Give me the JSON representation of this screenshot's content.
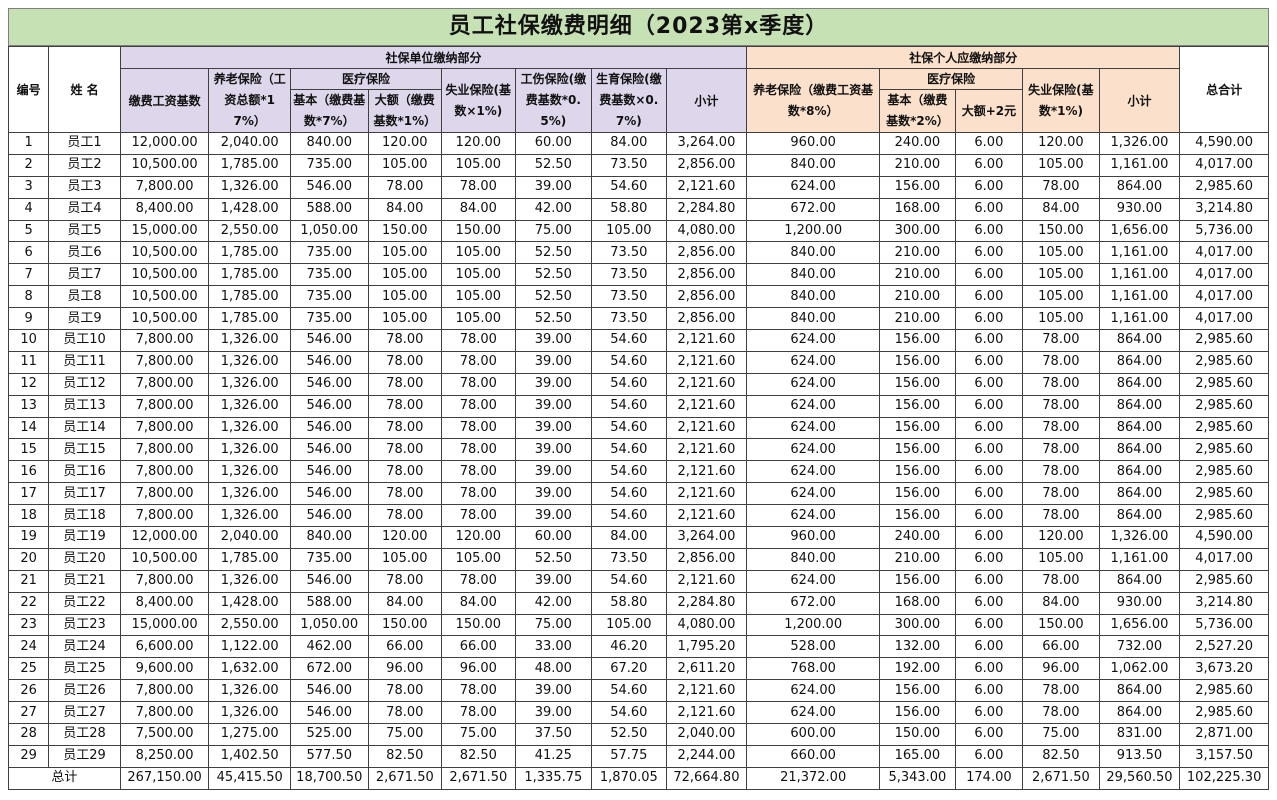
{
  "title": "员工社保缴费明细（2023第x季度）",
  "header": {
    "no": "编号",
    "name": "姓 名",
    "unit_group": "社保单位缴纳部分",
    "personal_group": "社保个人应缴纳部分",
    "grand_total": "总合计",
    "unit_base": "缴费工资基数",
    "unit_pension": "养老保险（工资总额*17%）",
    "unit_medical": "医疗保险",
    "unit_med_basic": "基本（缴费基数*7%）",
    "unit_med_major": "大额（缴费基数*1%）",
    "unit_unemp": "失业保险(基数×1%)",
    "unit_injury": "工伤保险(缴费基数*0.5%)",
    "unit_maternity": "生育保险(缴费基数×0.7%)",
    "unit_subtotal": "小计",
    "pers_pension": "养老保险（缴费工资基数*8%）",
    "pers_medical": "医疗保险",
    "pers_med_basic": "基本（缴费基数*2%）",
    "pers_med_major": "大额+2元",
    "pers_unemp": "失业保险(基数*1%)",
    "pers_subtotal": "小计"
  },
  "rows": [
    [
      "1",
      "员工1",
      "12,000.00",
      "2,040.00",
      "840.00",
      "120.00",
      "120.00",
      "60.00",
      "84.00",
      "3,264.00",
      "960.00",
      "240.00",
      "6.00",
      "120.00",
      "1,326.00",
      "4,590.00"
    ],
    [
      "2",
      "员工2",
      "10,500.00",
      "1,785.00",
      "735.00",
      "105.00",
      "105.00",
      "52.50",
      "73.50",
      "2,856.00",
      "840.00",
      "210.00",
      "6.00",
      "105.00",
      "1,161.00",
      "4,017.00"
    ],
    [
      "3",
      "员工3",
      "7,800.00",
      "1,326.00",
      "546.00",
      "78.00",
      "78.00",
      "39.00",
      "54.60",
      "2,121.60",
      "624.00",
      "156.00",
      "6.00",
      "78.00",
      "864.00",
      "2,985.60"
    ],
    [
      "4",
      "员工4",
      "8,400.00",
      "1,428.00",
      "588.00",
      "84.00",
      "84.00",
      "42.00",
      "58.80",
      "2,284.80",
      "672.00",
      "168.00",
      "6.00",
      "84.00",
      "930.00",
      "3,214.80"
    ],
    [
      "5",
      "员工5",
      "15,000.00",
      "2,550.00",
      "1,050.00",
      "150.00",
      "150.00",
      "75.00",
      "105.00",
      "4,080.00",
      "1,200.00",
      "300.00",
      "6.00",
      "150.00",
      "1,656.00",
      "5,736.00"
    ],
    [
      "6",
      "员工6",
      "10,500.00",
      "1,785.00",
      "735.00",
      "105.00",
      "105.00",
      "52.50",
      "73.50",
      "2,856.00",
      "840.00",
      "210.00",
      "6.00",
      "105.00",
      "1,161.00",
      "4,017.00"
    ],
    [
      "7",
      "员工7",
      "10,500.00",
      "1,785.00",
      "735.00",
      "105.00",
      "105.00",
      "52.50",
      "73.50",
      "2,856.00",
      "840.00",
      "210.00",
      "6.00",
      "105.00",
      "1,161.00",
      "4,017.00"
    ],
    [
      "8",
      "员工8",
      "10,500.00",
      "1,785.00",
      "735.00",
      "105.00",
      "105.00",
      "52.50",
      "73.50",
      "2,856.00",
      "840.00",
      "210.00",
      "6.00",
      "105.00",
      "1,161.00",
      "4,017.00"
    ],
    [
      "9",
      "员工9",
      "10,500.00",
      "1,785.00",
      "735.00",
      "105.00",
      "105.00",
      "52.50",
      "73.50",
      "2,856.00",
      "840.00",
      "210.00",
      "6.00",
      "105.00",
      "1,161.00",
      "4,017.00"
    ],
    [
      "10",
      "员工10",
      "7,800.00",
      "1,326.00",
      "546.00",
      "78.00",
      "78.00",
      "39.00",
      "54.60",
      "2,121.60",
      "624.00",
      "156.00",
      "6.00",
      "78.00",
      "864.00",
      "2,985.60"
    ],
    [
      "11",
      "员工11",
      "7,800.00",
      "1,326.00",
      "546.00",
      "78.00",
      "78.00",
      "39.00",
      "54.60",
      "2,121.60",
      "624.00",
      "156.00",
      "6.00",
      "78.00",
      "864.00",
      "2,985.60"
    ],
    [
      "12",
      "员工12",
      "7,800.00",
      "1,326.00",
      "546.00",
      "78.00",
      "78.00",
      "39.00",
      "54.60",
      "2,121.60",
      "624.00",
      "156.00",
      "6.00",
      "78.00",
      "864.00",
      "2,985.60"
    ],
    [
      "13",
      "员工13",
      "7,800.00",
      "1,326.00",
      "546.00",
      "78.00",
      "78.00",
      "39.00",
      "54.60",
      "2,121.60",
      "624.00",
      "156.00",
      "6.00",
      "78.00",
      "864.00",
      "2,985.60"
    ],
    [
      "14",
      "员工14",
      "7,800.00",
      "1,326.00",
      "546.00",
      "78.00",
      "78.00",
      "39.00",
      "54.60",
      "2,121.60",
      "624.00",
      "156.00",
      "6.00",
      "78.00",
      "864.00",
      "2,985.60"
    ],
    [
      "15",
      "员工15",
      "7,800.00",
      "1,326.00",
      "546.00",
      "78.00",
      "78.00",
      "39.00",
      "54.60",
      "2,121.60",
      "624.00",
      "156.00",
      "6.00",
      "78.00",
      "864.00",
      "2,985.60"
    ],
    [
      "16",
      "员工16",
      "7,800.00",
      "1,326.00",
      "546.00",
      "78.00",
      "78.00",
      "39.00",
      "54.60",
      "2,121.60",
      "624.00",
      "156.00",
      "6.00",
      "78.00",
      "864.00",
      "2,985.60"
    ],
    [
      "17",
      "员工17",
      "7,800.00",
      "1,326.00",
      "546.00",
      "78.00",
      "78.00",
      "39.00",
      "54.60",
      "2,121.60",
      "624.00",
      "156.00",
      "6.00",
      "78.00",
      "864.00",
      "2,985.60"
    ],
    [
      "18",
      "员工18",
      "7,800.00",
      "1,326.00",
      "546.00",
      "78.00",
      "78.00",
      "39.00",
      "54.60",
      "2,121.60",
      "624.00",
      "156.00",
      "6.00",
      "78.00",
      "864.00",
      "2,985.60"
    ],
    [
      "19",
      "员工19",
      "12,000.00",
      "2,040.00",
      "840.00",
      "120.00",
      "120.00",
      "60.00",
      "84.00",
      "3,264.00",
      "960.00",
      "240.00",
      "6.00",
      "120.00",
      "1,326.00",
      "4,590.00"
    ],
    [
      "20",
      "员工20",
      "10,500.00",
      "1,785.00",
      "735.00",
      "105.00",
      "105.00",
      "52.50",
      "73.50",
      "2,856.00",
      "840.00",
      "210.00",
      "6.00",
      "105.00",
      "1,161.00",
      "4,017.00"
    ],
    [
      "21",
      "员工21",
      "7,800.00",
      "1,326.00",
      "546.00",
      "78.00",
      "78.00",
      "39.00",
      "54.60",
      "2,121.60",
      "624.00",
      "156.00",
      "6.00",
      "78.00",
      "864.00",
      "2,985.60"
    ],
    [
      "22",
      "员工22",
      "8,400.00",
      "1,428.00",
      "588.00",
      "84.00",
      "84.00",
      "42.00",
      "58.80",
      "2,284.80",
      "672.00",
      "168.00",
      "6.00",
      "84.00",
      "930.00",
      "3,214.80"
    ],
    [
      "23",
      "员工23",
      "15,000.00",
      "2,550.00",
      "1,050.00",
      "150.00",
      "150.00",
      "75.00",
      "105.00",
      "4,080.00",
      "1,200.00",
      "300.00",
      "6.00",
      "150.00",
      "1,656.00",
      "5,736.00"
    ],
    [
      "24",
      "员工24",
      "6,600.00",
      "1,122.00",
      "462.00",
      "66.00",
      "66.00",
      "33.00",
      "46.20",
      "1,795.20",
      "528.00",
      "132.00",
      "6.00",
      "66.00",
      "732.00",
      "2,527.20"
    ],
    [
      "25",
      "员工25",
      "9,600.00",
      "1,632.00",
      "672.00",
      "96.00",
      "96.00",
      "48.00",
      "67.20",
      "2,611.20",
      "768.00",
      "192.00",
      "6.00",
      "96.00",
      "1,062.00",
      "3,673.20"
    ],
    [
      "26",
      "员工26",
      "7,800.00",
      "1,326.00",
      "546.00",
      "78.00",
      "78.00",
      "39.00",
      "54.60",
      "2,121.60",
      "624.00",
      "156.00",
      "6.00",
      "78.00",
      "864.00",
      "2,985.60"
    ],
    [
      "27",
      "员工27",
      "7,800.00",
      "1,326.00",
      "546.00",
      "78.00",
      "78.00",
      "39.00",
      "54.60",
      "2,121.60",
      "624.00",
      "156.00",
      "6.00",
      "78.00",
      "864.00",
      "2,985.60"
    ],
    [
      "28",
      "员工28",
      "7,500.00",
      "1,275.00",
      "525.00",
      "75.00",
      "75.00",
      "37.50",
      "52.50",
      "2,040.00",
      "600.00",
      "150.00",
      "6.00",
      "75.00",
      "831.00",
      "2,871.00"
    ],
    [
      "29",
      "员工29",
      "8,250.00",
      "1,402.50",
      "577.50",
      "82.50",
      "82.50",
      "41.25",
      "57.75",
      "2,244.00",
      "660.00",
      "165.00",
      "6.00",
      "82.50",
      "913.50",
      "3,157.50"
    ]
  ],
  "total_row": [
    "总计",
    "267,150.00",
    "45,415.50",
    "18,700.50",
    "2,671.50",
    "2,671.50",
    "1,335.75",
    "1,870.05",
    "72,664.80",
    "21,372.00",
    "5,343.00",
    "174.00",
    "2,671.50",
    "29,560.50",
    "102,225.30"
  ],
  "colors": {
    "title_bg": "#c6e2b5",
    "unit_bg": "#ded6ea",
    "personal_bg": "#fbe1cb"
  }
}
